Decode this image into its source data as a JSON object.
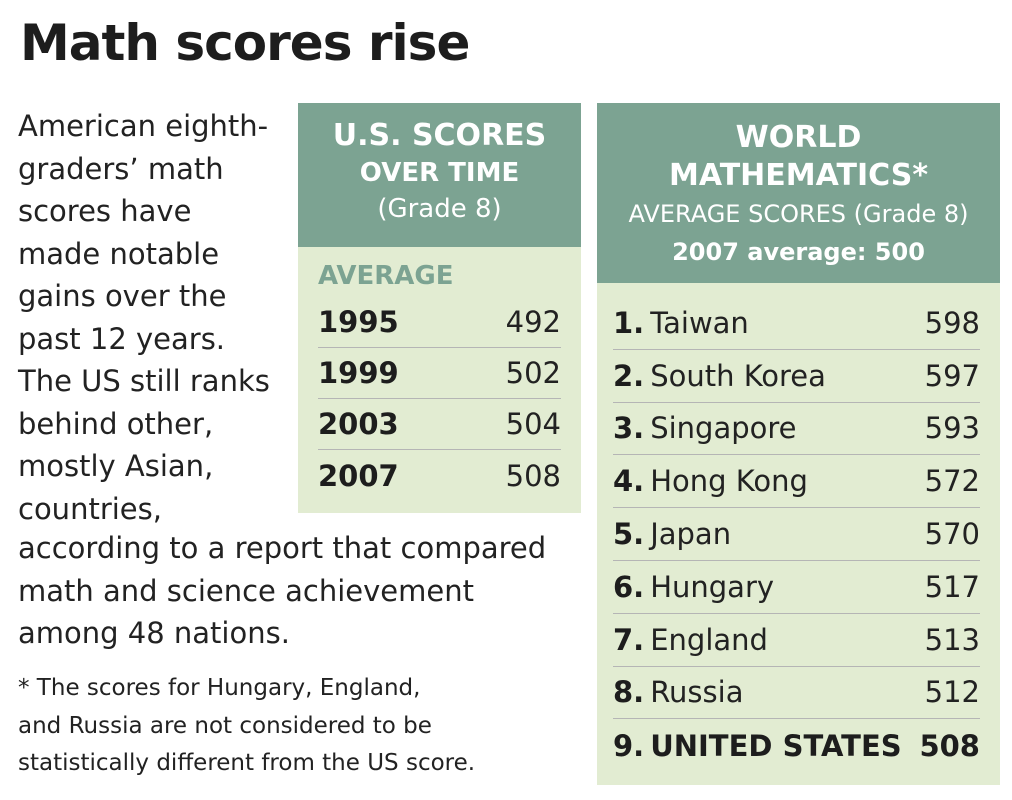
{
  "title": "Math scores rise",
  "intro_lines": [
    "American eighth-",
    "graders’ math",
    "scores have",
    "made notable",
    "gains over the",
    "past 12 years.",
    "The US still ranks",
    "behind other,",
    "mostly Asian,",
    "countries,"
  ],
  "intro_wide_lines": [
    "according to a report that compared",
    "math and science achievement",
    "among 48 nations."
  ],
  "footnote_lines": [
    "* The scores for Hungary, England,",
    "and Russia are not considered to be",
    "statistically different from the US score."
  ],
  "chart_data": [
    {
      "type": "table",
      "title": "U.S. SCORES",
      "subtitle": [
        "OVER TIME",
        "(Grade 8)"
      ],
      "column_label": "AVERAGE",
      "rows": [
        {
          "year": "1995",
          "score": 492
        },
        {
          "year": "1999",
          "score": 502
        },
        {
          "year": "2003",
          "score": 504
        },
        {
          "year": "2007",
          "score": 508
        }
      ]
    },
    {
      "type": "table",
      "title": "WORLD MATHEMATICS*",
      "title_lines": [
        "WORLD",
        "MATHEMATICS*"
      ],
      "subtitle": [
        "AVERAGE SCORES (Grade 8)",
        "2007 average: 500"
      ],
      "rows": [
        {
          "rank": "1.",
          "country": "Taiwan",
          "score": 598
        },
        {
          "rank": "2.",
          "country": "South Korea",
          "score": 597
        },
        {
          "rank": "3.",
          "country": "Singapore",
          "score": 593
        },
        {
          "rank": "4.",
          "country": "Hong Kong",
          "score": 572
        },
        {
          "rank": "5.",
          "country": "Japan",
          "score": 570
        },
        {
          "rank": "6.",
          "country": "Hungary",
          "score": 517
        },
        {
          "rank": "7.",
          "country": "England",
          "score": 513
        },
        {
          "rank": "8.",
          "country": "Russia",
          "score": 512
        },
        {
          "rank": "9.",
          "country": "UNITED STATES",
          "score": 508,
          "highlight": true
        }
      ]
    }
  ],
  "colors": {
    "header_bg": "#7ca392",
    "panel_bg": "#e2ecd2",
    "label_green": "#7ca392",
    "text": "#1d1d1d"
  }
}
